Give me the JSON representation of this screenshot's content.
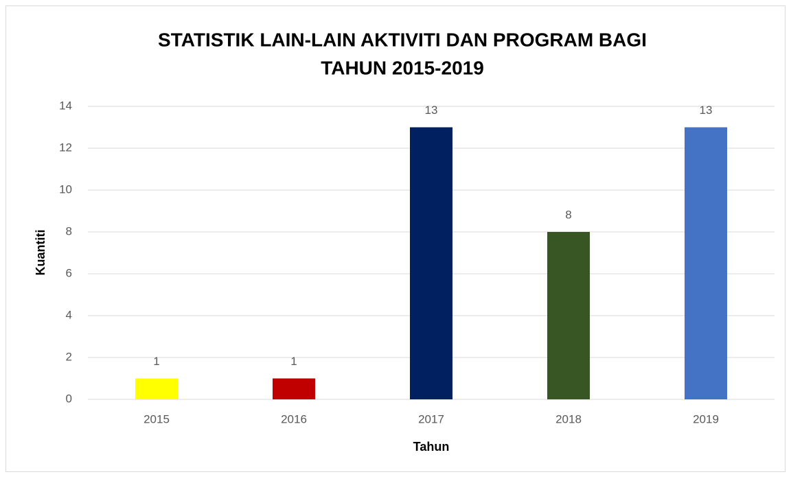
{
  "chart_data": {
    "type": "bar",
    "title": [
      "STATISTIK LAIN-LAIN AKTIVITI DAN PROGRAM BAGI",
      "TAHUN 2015-2019"
    ],
    "x_label": "Tahun",
    "y_label": "Kuantiti",
    "categories": [
      "2015",
      "2016",
      "2017",
      "2018",
      "2019"
    ],
    "values": [
      1,
      1,
      13,
      8,
      13
    ],
    "colors": [
      "#ffff00",
      "#c00000",
      "#002060",
      "#375623",
      "#4472c4"
    ],
    "ylim": [
      0,
      14
    ],
    "yticks": [
      0,
      2,
      4,
      6,
      8,
      10,
      12,
      14
    ],
    "grid": true
  }
}
